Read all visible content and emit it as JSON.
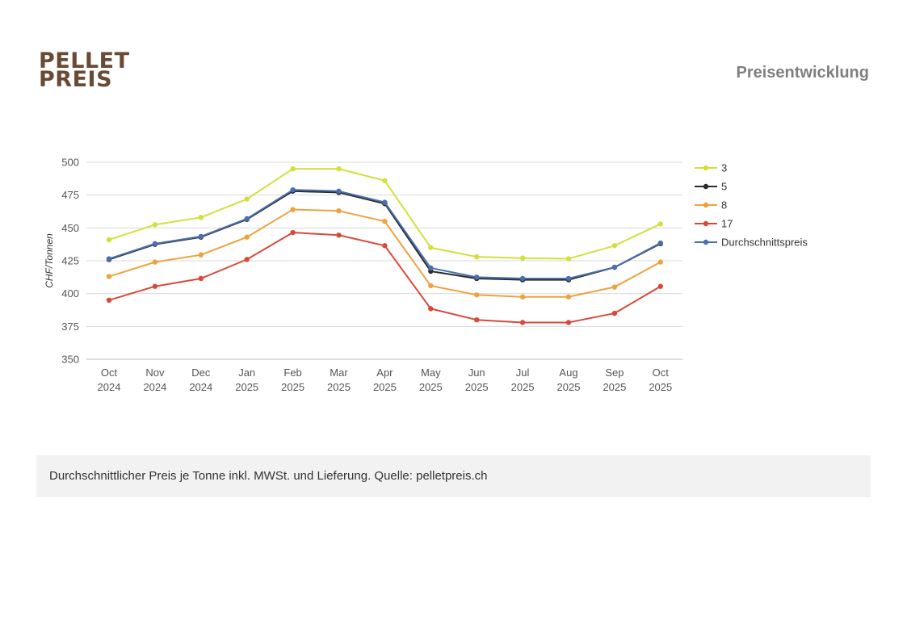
{
  "brand": {
    "line1": "PELLET",
    "line2": "PREIS"
  },
  "header": {
    "title": "Preisentwicklung"
  },
  "footer": {
    "note": "Durchschnittlicher Preis je Tonne inkl. MWSt. und Lieferung. Quelle: pelletpreis.ch"
  },
  "chart_data": {
    "type": "line",
    "title": "",
    "xlabel": "",
    "ylabel": "CHF/Tonnen",
    "ylim": [
      350,
      500
    ],
    "yticks": [
      350,
      375,
      400,
      425,
      450,
      475,
      500
    ],
    "grid": true,
    "legend_position": "right",
    "categories": [
      {
        "month": "Oct",
        "year": "2024"
      },
      {
        "month": "Nov",
        "year": "2024"
      },
      {
        "month": "Dec",
        "year": "2024"
      },
      {
        "month": "Jan",
        "year": "2025"
      },
      {
        "month": "Feb",
        "year": "2025"
      },
      {
        "month": "Mar",
        "year": "2025"
      },
      {
        "month": "Apr",
        "year": "2025"
      },
      {
        "month": "May",
        "year": "2025"
      },
      {
        "month": "Jun",
        "year": "2025"
      },
      {
        "month": "Jul",
        "year": "2025"
      },
      {
        "month": "Aug",
        "year": "2025"
      },
      {
        "month": "Sep",
        "year": "2025"
      },
      {
        "month": "Oct",
        "year": "2025"
      }
    ],
    "series": [
      {
        "name": "3",
        "color": "#d4df3c",
        "values": [
          441,
          452.5,
          458,
          472,
          495,
          495,
          486,
          435,
          428,
          427,
          426.5,
          436.5,
          453
        ]
      },
      {
        "name": "5",
        "color": "#2b2b2b",
        "values": [
          426,
          437.5,
          443,
          456.5,
          478,
          477,
          468.5,
          417,
          411.5,
          410.5,
          410.5,
          420,
          438
        ]
      },
      {
        "name": "8",
        "color": "#eda23f",
        "values": [
          413,
          424,
          429.5,
          443,
          464,
          463,
          455,
          406,
          399,
          397.5,
          397.5,
          405,
          424
        ]
      },
      {
        "name": "17",
        "color": "#d9493a",
        "values": [
          395,
          405.5,
          411.5,
          426,
          446.5,
          444.5,
          436.5,
          388.5,
          380,
          378,
          378,
          385,
          405.5
        ]
      },
      {
        "name": "Durchschnittspreis",
        "color": "#4a6fae",
        "values": [
          426.5,
          438,
          443.5,
          457,
          479,
          478,
          469.5,
          419.5,
          412.5,
          411.5,
          411.5,
          420,
          438.5
        ]
      }
    ]
  }
}
